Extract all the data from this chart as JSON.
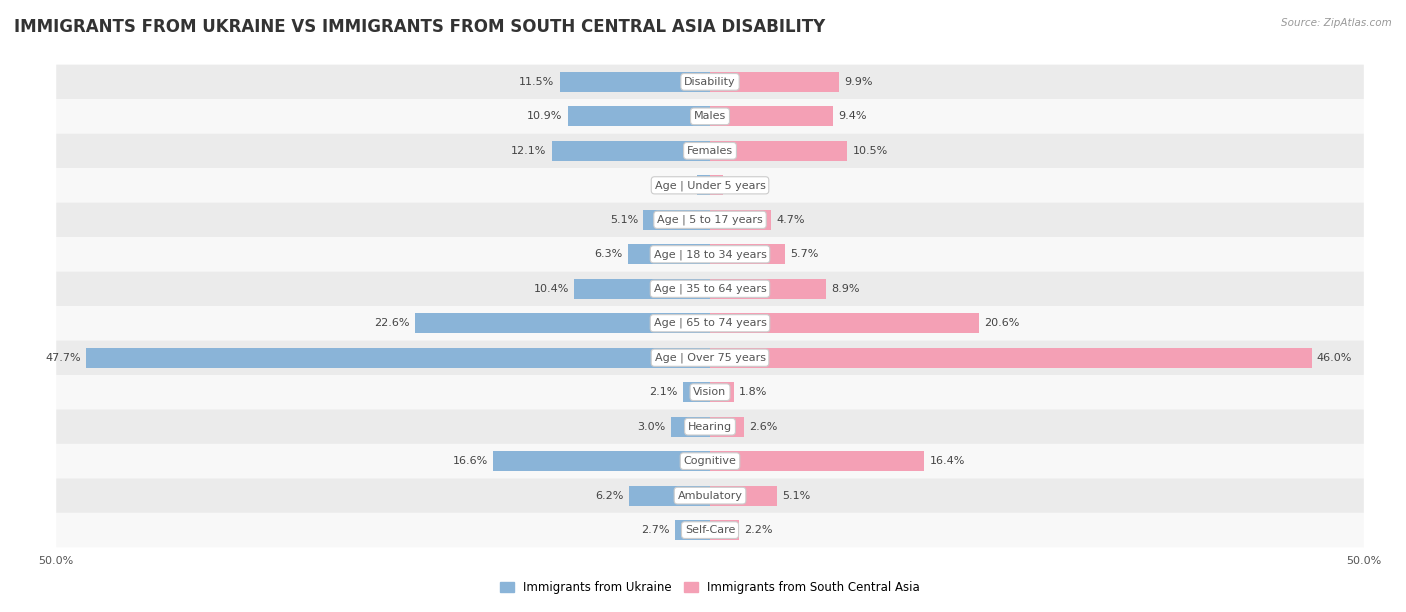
{
  "title": "IMMIGRANTS FROM UKRAINE VS IMMIGRANTS FROM SOUTH CENTRAL ASIA DISABILITY",
  "source": "Source: ZipAtlas.com",
  "categories": [
    "Disability",
    "Males",
    "Females",
    "Age | Under 5 years",
    "Age | 5 to 17 years",
    "Age | 18 to 34 years",
    "Age | 35 to 64 years",
    "Age | 65 to 74 years",
    "Age | Over 75 years",
    "Vision",
    "Hearing",
    "Cognitive",
    "Ambulatory",
    "Self-Care"
  ],
  "ukraine_values": [
    11.5,
    10.9,
    12.1,
    1.0,
    5.1,
    6.3,
    10.4,
    22.6,
    47.7,
    2.1,
    3.0,
    16.6,
    6.2,
    2.7
  ],
  "asia_values": [
    9.9,
    9.4,
    10.5,
    1.0,
    4.7,
    5.7,
    8.9,
    20.6,
    46.0,
    1.8,
    2.6,
    16.4,
    5.1,
    2.2
  ],
  "ukraine_color": "#8ab4d8",
  "asia_color": "#f4a0b5",
  "ukraine_label": "Immigrants from Ukraine",
  "asia_label": "Immigrants from South Central Asia",
  "axis_limit": 50.0,
  "bar_height": 0.58,
  "row_bg_even": "#ebebeb",
  "row_bg_odd": "#f8f8f8",
  "title_fontsize": 12,
  "value_fontsize": 8,
  "category_fontsize": 8,
  "tick_fontsize": 8
}
